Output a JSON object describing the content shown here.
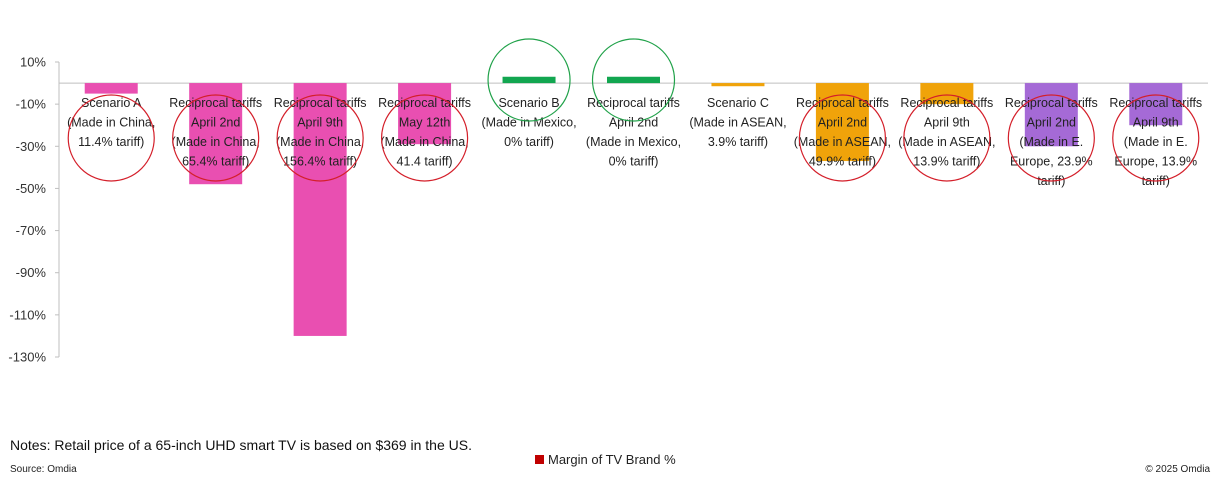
{
  "chart_data": {
    "type": "bar",
    "categories": [
      [
        "Scenario A",
        "(Made in China,",
        "11.4% tariff)"
      ],
      [
        "Reciprocal tariffs",
        "April 2nd",
        "(Made in China,",
        "65.4% tariff)"
      ],
      [
        "Reciprocal tariffs",
        "April 9th",
        "(Made in China,",
        "156.4% tariff)"
      ],
      [
        "Reciprocal tariffs",
        "May 12th",
        "(Made in China,",
        "41.4 tariff)"
      ],
      [
        "Scenario B",
        "(Made in Mexico,",
        "0% tariff)"
      ],
      [
        "Reciprocal tariffs",
        "April 2nd",
        "(Made in Mexico,",
        "0% tariff)"
      ],
      [
        "Scenario C",
        "(Made in ASEAN,",
        "3.9% tariff)"
      ],
      [
        "Reciprocal tariffs",
        "April 2nd",
        "(Made in ASEAN,",
        "49.9% tariff)"
      ],
      [
        "Reciprocal tariffs",
        "April 9th",
        "(Made in ASEAN,",
        "13.9% tariff)"
      ],
      [
        "Reciprocal tariffs",
        "April 2nd",
        "(Made in E.",
        "Europe, 23.9%",
        "tariff)"
      ],
      [
        "Reciprocal tariffs",
        "April 9th",
        "(Made in E.",
        "Europe, 13.9%",
        "tariff)"
      ]
    ],
    "series": [
      {
        "name": "Margin of TV Brand %",
        "values": [
          -5,
          -48,
          -120,
          -29,
          3,
          3,
          -1.5,
          -37,
          -10,
          -30,
          -20
        ],
        "colors": [
          "#e94fb1",
          "#e94fb1",
          "#e94fb1",
          "#e94fb1",
          "#12a650",
          "#12a650",
          "#f0a30a",
          "#f0a30a",
          "#f0a30a",
          "#a56ad6",
          "#a56ad6"
        ]
      }
    ],
    "circled": [
      "red",
      "red",
      "red",
      "red",
      "green",
      "green",
      "none",
      "red",
      "red",
      "red",
      "red"
    ],
    "yticks": [
      10,
      -10,
      -30,
      -50,
      -70,
      -90,
      -110,
      -130
    ],
    "ytick_labels": [
      "10%",
      "-10%",
      "-30%",
      "-50%",
      "-70%",
      "-90%",
      "-110%",
      "-130%"
    ],
    "ylim": [
      -130,
      10
    ],
    "legend": {
      "label": "Margin of TV Brand %",
      "color": "#c00000",
      "position": "bottom-center"
    },
    "title": "",
    "xlabel": "",
    "ylabel": ""
  },
  "footer": {
    "notes": "Notes: Retail price of a 65-inch UHD smart TV is based on $369 in the US.",
    "source": "Source: Omdia",
    "copyright": "© 2025 Omdia"
  }
}
